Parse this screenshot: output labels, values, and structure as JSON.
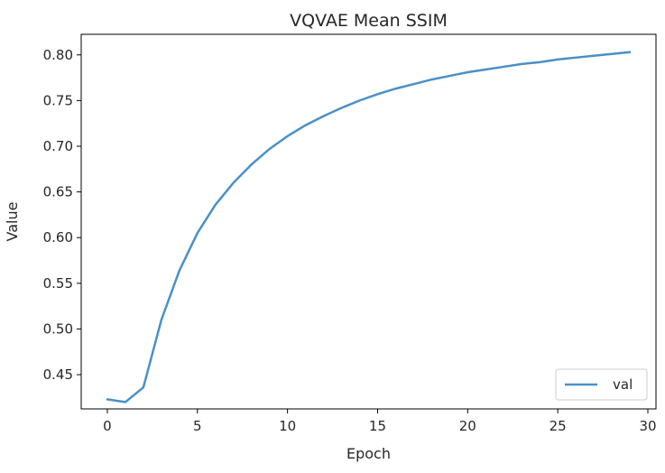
{
  "chart_data": {
    "type": "line",
    "title": "VQVAE Mean SSIM",
    "xlabel": "Epoch",
    "ylabel": "Value",
    "xlim": [
      -1.45,
      30.45
    ],
    "ylim": [
      0.4125,
      0.8225
    ],
    "xticks": [
      0,
      5,
      10,
      15,
      20,
      25,
      30
    ],
    "yticks": [
      0.45,
      0.5,
      0.55,
      0.6,
      0.65,
      0.7,
      0.75,
      0.8
    ],
    "xtick_labels": [
      "0",
      "5",
      "10",
      "15",
      "20",
      "25",
      "30"
    ],
    "ytick_labels": [
      "0.45",
      "0.50",
      "0.55",
      "0.60",
      "0.65",
      "0.70",
      "0.75",
      "0.80"
    ],
    "legend": {
      "location": "lower-right",
      "entries": [
        "val"
      ]
    },
    "series": [
      {
        "name": "val",
        "color": "#4a90c8",
        "x": [
          0,
          1,
          2,
          3,
          4,
          5,
          6,
          7,
          8,
          9,
          10,
          11,
          12,
          13,
          14,
          15,
          16,
          17,
          18,
          19,
          20,
          21,
          22,
          23,
          24,
          25,
          26,
          27,
          28,
          29
        ],
        "y": [
          0.423,
          0.42,
          0.436,
          0.51,
          0.564,
          0.605,
          0.636,
          0.66,
          0.68,
          0.697,
          0.711,
          0.723,
          0.733,
          0.742,
          0.75,
          0.757,
          0.763,
          0.768,
          0.773,
          0.777,
          0.781,
          0.784,
          0.787,
          0.79,
          0.792,
          0.795,
          0.797,
          0.799,
          0.801,
          0.803
        ]
      }
    ]
  }
}
